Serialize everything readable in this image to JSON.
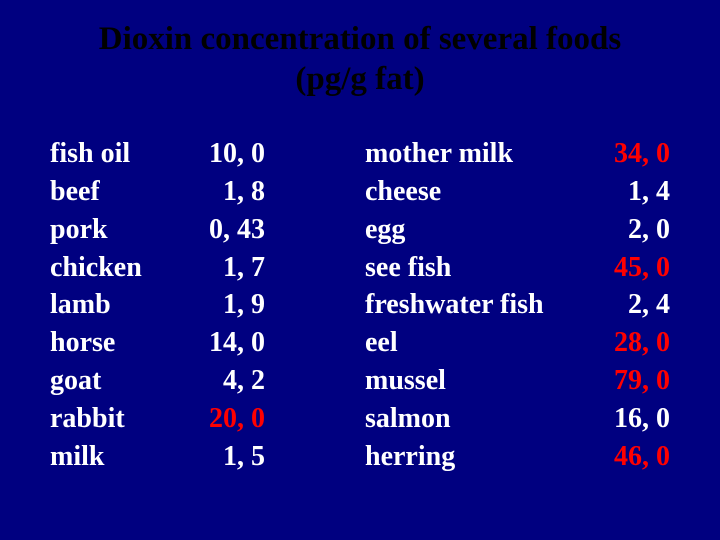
{
  "title_line1": "Dioxin concentration of several foods",
  "title_line2": "(pg/g fat)",
  "colors": {
    "background": "#000080",
    "title_text": "#000000",
    "body_text": "#ffffff",
    "highlight": "#ff0000"
  },
  "typography": {
    "family": "Times New Roman",
    "title_fontsize_pt": 25,
    "body_fontsize_pt": 21,
    "weight": "bold"
  },
  "left": [
    {
      "label": "fish oil",
      "value": "10, 0",
      "hl": false
    },
    {
      "label": "beef",
      "value": "1, 8",
      "hl": false
    },
    {
      "label": "pork",
      "value": "0, 43",
      "hl": false
    },
    {
      "label": "chicken",
      "value": "1, 7",
      "hl": false
    },
    {
      "label": "lamb",
      "value": "1, 9",
      "hl": false
    },
    {
      "label": "horse",
      "value": "14, 0",
      "hl": false
    },
    {
      "label": "goat",
      "value": "4, 2",
      "hl": false
    },
    {
      "label": "rabbit",
      "value": "20, 0",
      "hl": true
    },
    {
      "label": "milk",
      "value": "1, 5",
      "hl": false
    }
  ],
  "right": [
    {
      "label": "mother milk",
      "value": "34, 0",
      "hl": true
    },
    {
      "label": "cheese",
      "value": "1, 4",
      "hl": false
    },
    {
      "label": "egg",
      "value": "2, 0",
      "hl": false
    },
    {
      "label": "see fish",
      "value": "45, 0",
      "hl": true
    },
    {
      "label": "freshwater fish",
      "value": "2, 4",
      "hl": false
    },
    {
      "label": "eel",
      "value": "28, 0",
      "hl": true
    },
    {
      "label": "mussel",
      "value": "79, 0",
      "hl": true
    },
    {
      "label": "salmon",
      "value": "16, 0",
      "hl": false
    },
    {
      "label": "herring",
      "value": "46, 0",
      "hl": true
    }
  ]
}
